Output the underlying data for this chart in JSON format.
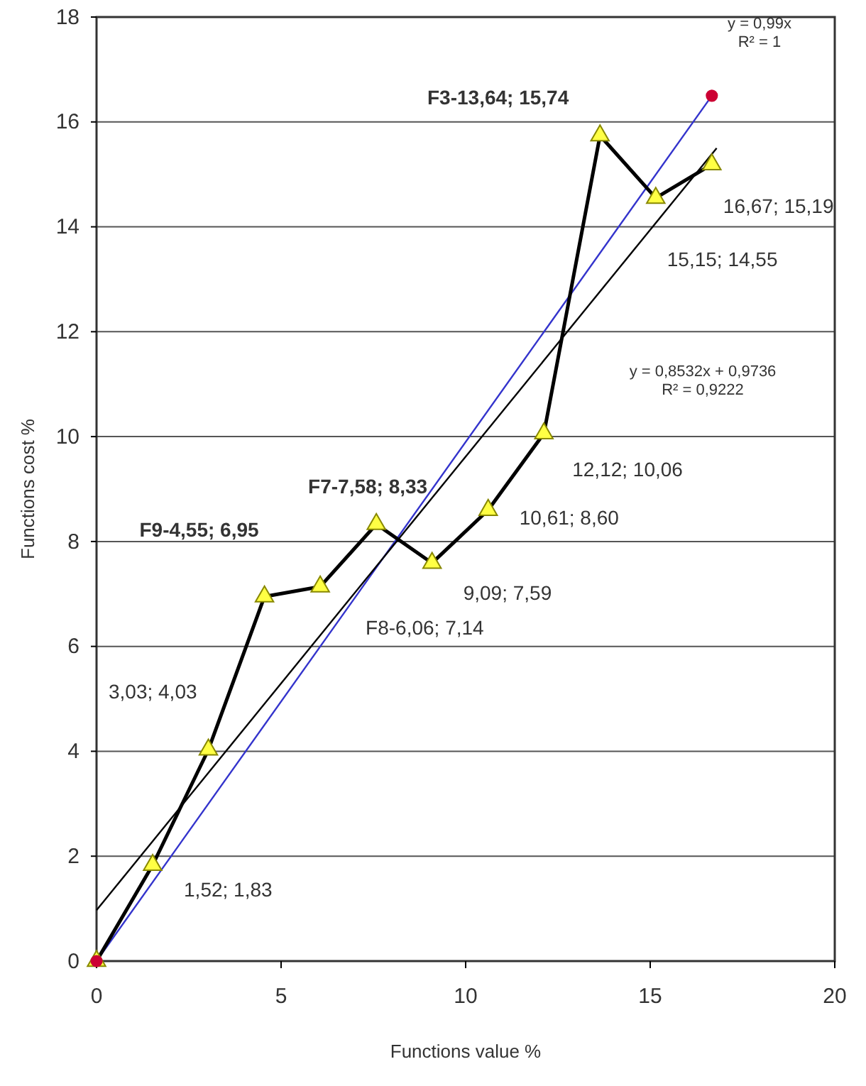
{
  "chart_data": {
    "type": "line",
    "xlabel": "Functions value %",
    "ylabel": "Functions cost %",
    "xlim": [
      0,
      20
    ],
    "xticks": [
      0,
      5,
      10,
      15,
      20
    ],
    "ylim": [
      0,
      18
    ],
    "yticks": [
      0,
      2,
      4,
      6,
      8,
      10,
      12,
      14,
      16,
      18
    ],
    "grid": "y",
    "series": [
      {
        "color": "#3333cc",
        "marker": "none",
        "x": [
          0,
          16.67
        ],
        "values": [
          0,
          16.5
        ]
      },
      {
        "color": "#000000",
        "marker": "none",
        "x": [
          0,
          16.8
        ],
        "values": [
          0.97,
          15.5
        ]
      },
      {
        "color": "#000000",
        "marker": "triangle",
        "x": [
          0,
          1.52,
          3.03,
          4.55,
          6.06,
          7.58,
          9.09,
          10.61,
          12.12,
          13.64,
          15.15,
          16.67
        ],
        "values": [
          0,
          1.83,
          4.03,
          6.95,
          7.14,
          8.33,
          7.59,
          8.6,
          10.06,
          15.74,
          14.55,
          15.19
        ]
      },
      {
        "type": "scatter",
        "color": "#cc0033",
        "marker": "circle",
        "x": [
          0,
          16.67
        ],
        "values": [
          0,
          16.5
        ]
      }
    ],
    "annotations": [
      {
        "text": "1,52; 1,83",
        "x": 1.52,
        "y": 1.83
      },
      {
        "text": "3,03; 4,03",
        "x": 3.03,
        "y": 4.03
      },
      {
        "text": "F9-4,55; 6,95",
        "x": 4.55,
        "y": 6.95
      },
      {
        "text": "F8-6,06; 7,14",
        "x": 6.06,
        "y": 7.14
      },
      {
        "text": "F7-7,58; 8,33",
        "x": 7.58,
        "y": 8.33
      },
      {
        "text": "9,09; 7,59",
        "x": 9.09,
        "y": 7.59
      },
      {
        "text": "10,61; 8,60",
        "x": 10.61,
        "y": 8.6
      },
      {
        "text": "12,12; 10,06",
        "x": 12.12,
        "y": 10.06
      },
      {
        "text": "F3-13,64; 15,74",
        "x": 13.64,
        "y": 15.74
      },
      {
        "text": "15,15; 14,55",
        "x": 15.15,
        "y": 14.55
      },
      {
        "text": "16,67; 15,19",
        "x": 16.67,
        "y": 15.19
      },
      "y = 0,99x\nR² = 1",
      "y = 0,8532x + 0,9736\nR² = 0,9222"
    ]
  }
}
